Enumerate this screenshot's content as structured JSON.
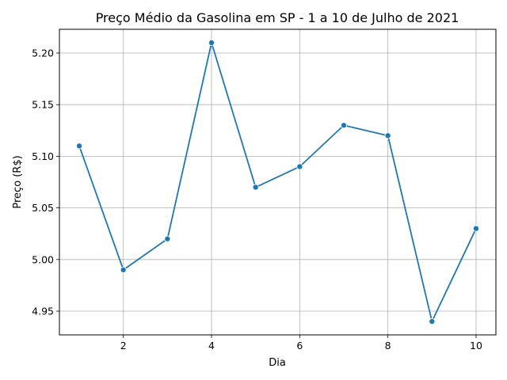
{
  "chart_data": {
    "type": "line",
    "title": "Preço Médio da Gasolina em SP - 1 a 10 de Julho de 2021",
    "xlabel": "Dia",
    "ylabel": "Preço (R$)",
    "x": [
      1,
      2,
      3,
      4,
      5,
      6,
      7,
      8,
      9,
      10
    ],
    "series": [
      {
        "values": [
          5.11,
          4.99,
          5.02,
          5.21,
          5.07,
          5.09,
          5.13,
          5.12,
          4.94,
          5.03
        ]
      }
    ],
    "xlim": [
      0.55,
      10.45
    ],
    "ylim": [
      4.927,
      5.223
    ],
    "xticks": [
      2,
      4,
      6,
      8,
      10
    ],
    "xtick_labels": [
      "2",
      "4",
      "6",
      "8",
      "10"
    ],
    "yticks": [
      4.95,
      5.0,
      5.05,
      5.1,
      5.15,
      5.2
    ],
    "ytick_labels": [
      "4.95",
      "5.00",
      "5.05",
      "5.10",
      "5.15",
      "5.20"
    ],
    "grid": true,
    "line_color": "#1f77b4",
    "marker": "circle"
  }
}
